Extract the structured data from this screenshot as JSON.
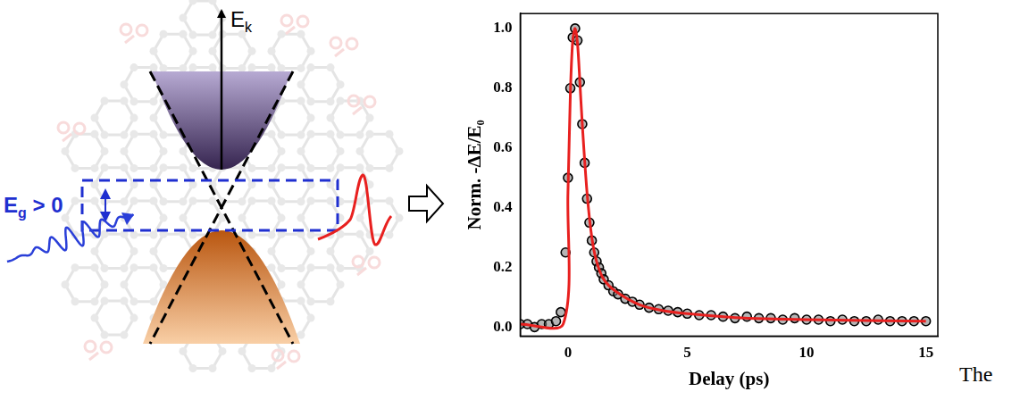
{
  "diagram": {
    "axis_label": {
      "text": "E",
      "subscript": "k"
    },
    "gap_label": {
      "text": "E",
      "subscript": "g",
      "suffix": " > 0"
    }
  },
  "caption": "The",
  "chart_data": {
    "type": "scatter",
    "xlabel": "Delay (ps)",
    "ylabel": "Norm. -ΔE/E₀",
    "xlim": [
      -2,
      15.5
    ],
    "xticks": [
      0,
      5,
      10,
      15
    ],
    "ylim": [
      -0.03,
      1.05
    ],
    "yticks": [
      {
        "value": 0,
        "label": "0.0"
      },
      0.2,
      0.4,
      0.6,
      0.8,
      {
        "value": 1,
        "label": "1.0"
      }
    ],
    "grid": false,
    "series": [
      {
        "type": "scatter",
        "color": "#000000",
        "marker": "circle",
        "x": [
          -2.0,
          -1.7,
          -1.4,
          -1.1,
          -0.8,
          -0.5,
          -0.3,
          -0.1,
          0.0,
          0.1,
          0.2,
          0.3,
          0.4,
          0.5,
          0.6,
          0.7,
          0.8,
          0.9,
          1.0,
          1.1,
          1.2,
          1.3,
          1.4,
          1.5,
          1.7,
          1.9,
          2.1,
          2.4,
          2.7,
          3.0,
          3.4,
          3.8,
          4.2,
          4.6,
          5.0,
          5.5,
          6.0,
          6.5,
          7.0,
          7.5,
          8.0,
          8.5,
          9.0,
          9.5,
          10.0,
          10.5,
          11.0,
          11.5,
          12.0,
          12.5,
          13.0,
          13.5,
          14.0,
          14.5,
          15.0
        ],
        "values": [
          0.01,
          0.01,
          0.0,
          0.01,
          0.01,
          0.02,
          0.05,
          0.25,
          0.5,
          0.8,
          0.97,
          1.0,
          0.96,
          0.82,
          0.68,
          0.55,
          0.43,
          0.35,
          0.29,
          0.25,
          0.22,
          0.2,
          0.18,
          0.16,
          0.14,
          0.12,
          0.11,
          0.095,
          0.085,
          0.075,
          0.065,
          0.06,
          0.055,
          0.05,
          0.045,
          0.04,
          0.04,
          0.035,
          0.03,
          0.035,
          0.03,
          0.03,
          0.025,
          0.03,
          0.025,
          0.025,
          0.02,
          0.025,
          0.02,
          0.02,
          0.025,
          0.02,
          0.02,
          0.02,
          0.02
        ]
      },
      {
        "type": "line",
        "color": "#e8201f",
        "line_style": "solid",
        "x": [
          -2,
          -0.2,
          0,
          0.1,
          0.2,
          0.3,
          0.4,
          0.5,
          0.6,
          0.8,
          1.0,
          1.2,
          1.5,
          2,
          3,
          4,
          5,
          7,
          10,
          15
        ],
        "values": [
          0.01,
          0.01,
          0.45,
          0.78,
          0.96,
          1.0,
          0.95,
          0.82,
          0.68,
          0.45,
          0.3,
          0.22,
          0.16,
          0.12,
          0.075,
          0.055,
          0.045,
          0.032,
          0.025,
          0.02
        ]
      }
    ]
  }
}
